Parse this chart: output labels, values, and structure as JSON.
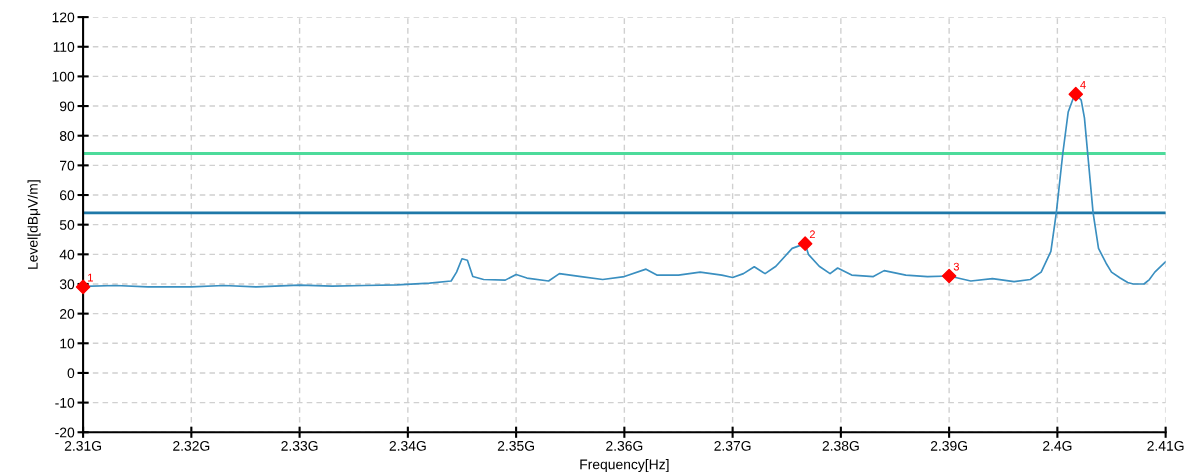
{
  "chart_data": {
    "type": "line",
    "xlabel": "Frequency[Hz]",
    "ylabel": "Level[dBμV/m]",
    "xlim": [
      2.31,
      2.41
    ],
    "ylim": [
      -20,
      120
    ],
    "xticks": [
      {
        "value": 2.31,
        "label": "2.31G"
      },
      {
        "value": 2.32,
        "label": "2.32G"
      },
      {
        "value": 2.33,
        "label": "2.33G"
      },
      {
        "value": 2.34,
        "label": "2.34G"
      },
      {
        "value": 2.35,
        "label": "2.35G"
      },
      {
        "value": 2.36,
        "label": "2.36G"
      },
      {
        "value": 2.37,
        "label": "2.37G"
      },
      {
        "value": 2.38,
        "label": "2.38G"
      },
      {
        "value": 2.39,
        "label": "2.39G"
      },
      {
        "value": 2.4,
        "label": "2.4G"
      },
      {
        "value": 2.41,
        "label": "2.41G"
      }
    ],
    "yticks": [
      -20,
      -10,
      0,
      10,
      20,
      30,
      40,
      50,
      60,
      70,
      80,
      90,
      100,
      110,
      120
    ],
    "grid": true,
    "line_style": "solid",
    "marker": "none",
    "series": [
      {
        "color": "#3a8fc0",
        "x": [
          2.31,
          2.313,
          2.316,
          2.32,
          2.323,
          2.326,
          2.33,
          2.333,
          2.336,
          2.339,
          2.342,
          2.344,
          2.3445,
          2.345,
          2.3455,
          2.346,
          2.347,
          2.349,
          2.35,
          2.351,
          2.353,
          2.354,
          2.356,
          2.358,
          2.36,
          2.362,
          2.363,
          2.365,
          2.367,
          2.369,
          2.37,
          2.371,
          2.372,
          2.373,
          2.374,
          2.3755,
          2.3767,
          2.377,
          2.378,
          2.379,
          2.3797,
          2.381,
          2.383,
          2.384,
          2.386,
          2.388,
          2.39,
          2.392,
          2.394,
          2.396,
          2.3975,
          2.3985,
          2.3994,
          2.3999,
          2.4005,
          2.401,
          2.4015,
          2.4017,
          2.4022,
          2.4025,
          2.4028,
          2.4033,
          2.4038,
          2.4045,
          2.405,
          2.4058,
          2.4065,
          2.407,
          2.408,
          2.4085,
          2.409,
          2.41
        ],
        "values": [
          29.2,
          29.5,
          29.0,
          29.0,
          29.5,
          29.0,
          29.6,
          29.3,
          29.5,
          29.7,
          30.3,
          31.0,
          34,
          38.5,
          38,
          32.5,
          31.5,
          31.3,
          33.2,
          32.0,
          31.0,
          33.5,
          32.5,
          31.5,
          32.5,
          35.0,
          33.0,
          33.0,
          34.0,
          33.0,
          32.2,
          33.5,
          35.8,
          33.5,
          36,
          42,
          43.6,
          40,
          36,
          33.5,
          35.4,
          33,
          32.5,
          34.5,
          33,
          32.5,
          32.7,
          31.0,
          31.8,
          30.8,
          31.5,
          34,
          41,
          54,
          74,
          88,
          93,
          94,
          92,
          86,
          74,
          54,
          42,
          37,
          34,
          32,
          30.5,
          30,
          30,
          31.5,
          34,
          37.5
        ]
      },
      {
        "type": "scatter",
        "color": "#ff0000",
        "marker": "diamond",
        "x": [
          2.31,
          2.3767,
          2.39,
          2.4017
        ],
        "values": [
          29,
          43.6,
          32.7,
          94
        ]
      }
    ],
    "ref_lines": [
      {
        "axis": "y",
        "value": 74,
        "color": "#4ddb9b",
        "line_style": "solid"
      },
      {
        "axis": "y",
        "value": 54,
        "color": "#1f78a8",
        "line_style": "solid"
      }
    ],
    "annotations": [
      {
        "text": "1",
        "x": 2.31,
        "y": 29
      },
      {
        "text": "2",
        "x": 2.3767,
        "y": 43.6
      },
      {
        "text": "3",
        "x": 2.39,
        "y": 32.7
      },
      {
        "text": "4",
        "x": 2.4017,
        "y": 94
      }
    ]
  }
}
